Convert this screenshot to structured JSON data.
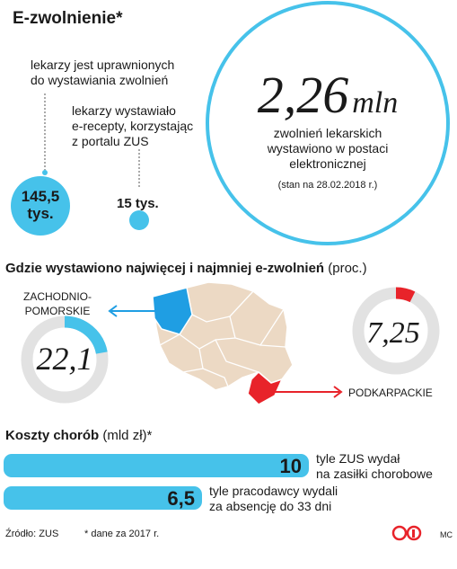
{
  "title": "E-zwolnienie*",
  "doctors": {
    "authorized_label": "lekarzy jest uprawnionych\ndo wystawiania zwolnień",
    "authorized_value": "145,5\ntys.",
    "issued_label": "lekarzy wystawiało\ne-recepty, korzystając\nz portalu ZUS",
    "issued_value": "15 tys."
  },
  "total": {
    "value": "2,26",
    "unit": "mln",
    "desc": "zwolnień lekarskich\nwystawiono w postaci\nelektronicznej",
    "note": "(stan na 28.02.2018 r.)"
  },
  "map_section": {
    "title": "Gdzie wystawiono najwięcej i najmniej e-zwolnień",
    "unit": "(proc.)",
    "highest_region": "ZACHODNIO-\nPOMORSKIE",
    "lowest_region": "PODKARPACKIE"
  },
  "costs_section": {
    "title": "Koszty chorób",
    "unit": "(mld zł)*"
  },
  "footer": {
    "source": "Źródło: ZUS",
    "note": "* dane za 2017 r.",
    "author": "MC"
  },
  "colors": {
    "accent": "#46c2ea",
    "highlight_blue": "#1f9ee3",
    "highlight_red": "#e8232a",
    "map_fill": "#ecd9c4",
    "ring_track": "#e2e2e2"
  },
  "chart_data": [
    {
      "type": "pie",
      "title": "",
      "region": "ZACHODNIO-POMORSKIE",
      "value": 22.1,
      "display": "22,1",
      "max": 100,
      "color": "#46c2ea"
    },
    {
      "type": "pie",
      "title": "",
      "region": "PODKARPACKIE",
      "value": 7.25,
      "display": "7,25",
      "max": 100,
      "color": "#e8232a"
    },
    {
      "type": "bar",
      "title": "Koszty chorób",
      "categories": [
        "tyle ZUS wydał\nna zasiłki chorobowe",
        "tyle pracodawcy wydali\nza absencję do 33 dni"
      ],
      "values": [
        10,
        6.5
      ],
      "value_labels": [
        "10",
        "6,5"
      ],
      "xlim": [
        0,
        10
      ]
    }
  ]
}
